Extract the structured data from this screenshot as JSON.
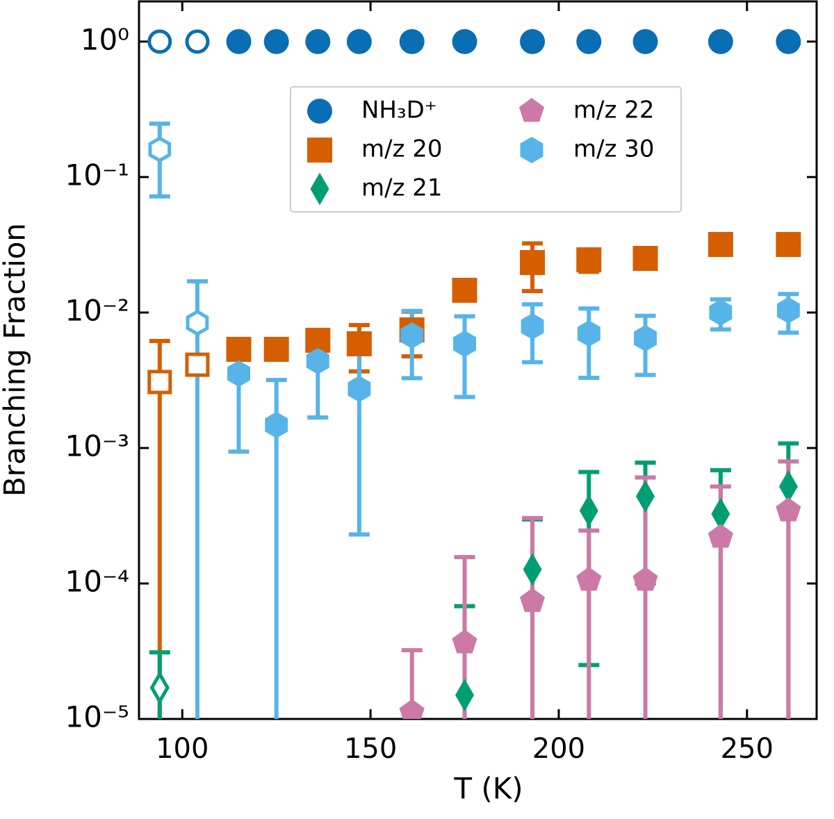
{
  "chart_data": {
    "type": "scatter",
    "x_label": "T (K)",
    "y_label": "Branching Fraction",
    "x": [
      94,
      104,
      115,
      125,
      136,
      147,
      161,
      175,
      193,
      208,
      223,
      243,
      261
    ],
    "open_x": [
      94,
      104
    ],
    "xlim": [
      88.5,
      268.5
    ],
    "xticks": [
      100,
      150,
      200,
      250
    ],
    "ylim": [
      1e-05,
      1.98
    ],
    "log_y": true,
    "yticks": [
      {
        "value": 1,
        "label": "10⁰"
      },
      {
        "value": 0.1,
        "label": "10⁻¹"
      },
      {
        "value": 0.01,
        "label": "10⁻²"
      },
      {
        "value": 0.001,
        "label": "10⁻³"
      },
      {
        "value": 0.0001,
        "label": "10⁻⁴"
      },
      {
        "value": 1e-05,
        "label": "10⁻⁵"
      }
    ],
    "legend_loc": "upper center",
    "legend_columns": 2,
    "series": [
      {
        "name": "NH₃D⁺",
        "color": "#0a6eb4",
        "marker": "circle",
        "values": [
          1,
          1,
          1,
          1,
          1,
          1,
          1,
          1,
          1,
          1,
          1,
          1,
          1
        ],
        "errors": [
          null,
          null,
          null,
          null,
          null,
          null,
          null,
          null,
          null,
          null,
          null,
          null,
          null
        ]
      },
      {
        "name": "m/z 20",
        "color": "#d55e00",
        "marker": "square",
        "values": [
          0.00307,
          0.00412,
          0.00535,
          0.00535,
          0.00624,
          0.00588,
          0.00745,
          0.0146,
          0.0234,
          0.0245,
          0.0251,
          0.0318,
          0.0318
        ],
        "errors": [
          0.0031,
          null,
          null,
          null,
          null,
          0.0022,
          0.0027,
          null,
          0.009,
          0.0045,
          null,
          null,
          null
        ]
      },
      {
        "name": "m/z 21",
        "color": "#009e73",
        "marker": "diamond",
        "values": [
          1.7e-05,
          null,
          null,
          null,
          null,
          null,
          null,
          1.5e-05,
          0.000127,
          0.000345,
          0.00044,
          0.000326,
          0.00052
        ],
        "errors": [
          1.4e-05,
          null,
          null,
          null,
          null,
          null,
          null,
          5.3e-05,
          0.00017,
          0.00032,
          0.00034,
          0.00036,
          0.00056
        ]
      },
      {
        "name": "m/z 22",
        "color": "#cc79a7",
        "marker": "pentagon",
        "values": [
          null,
          null,
          null,
          null,
          null,
          null,
          1.12e-05,
          3.66e-05,
          7.4e-05,
          0.000106,
          0.000106,
          0.00022,
          0.000345
        ],
        "errors": [
          null,
          null,
          null,
          null,
          null,
          null,
          2.1e-05,
          0.00012,
          0.00023,
          0.00014,
          0.0005,
          0.0003,
          0.00045
        ]
      },
      {
        "name": "m/z 30",
        "color": "#56b4e9",
        "marker": "hexagon",
        "values": [
          0.16,
          0.0084,
          0.00354,
          0.00148,
          0.00438,
          0.00273,
          0.00678,
          0.00588,
          0.0079,
          0.007,
          0.00646,
          0.01,
          0.0104
        ],
        "errors": [
          0.088,
          0.0086,
          0.0026,
          0.0017,
          0.0027,
          0.0025,
          0.0035,
          0.0035,
          0.0036,
          0.0037,
          0.003,
          0.0025,
          0.0033
        ]
      }
    ]
  }
}
